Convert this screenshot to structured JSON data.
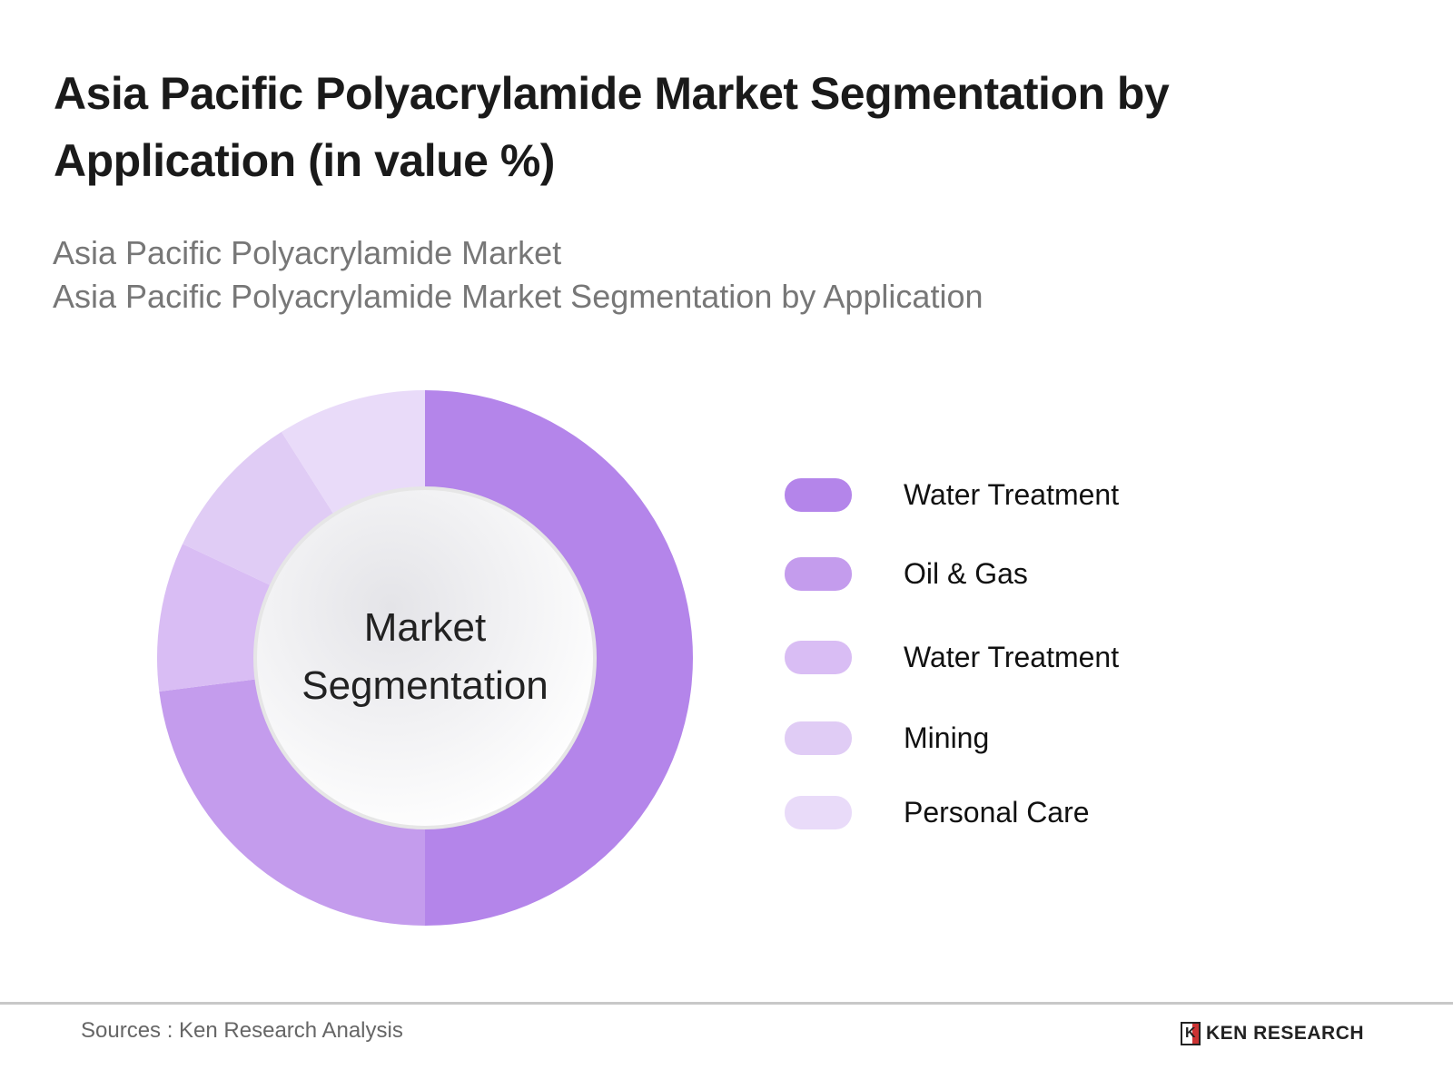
{
  "title": "Asia Pacific Polyacrylamide Market Segmentation by Application (in value %)",
  "subtitle_1": "Asia Pacific Polyacrylamide Market",
  "subtitle_2": "Asia Pacific Polyacrylamide Market Segmentation by Application",
  "chart_data": {
    "type": "pie",
    "variant": "donut",
    "center_label": "Market Segmentation",
    "categories": [
      "Water Treatment",
      "Oil & Gas",
      "Water Treatment",
      "Mining",
      "Personal Care"
    ],
    "values": [
      50,
      23,
      9,
      9,
      9
    ],
    "colors": [
      "#b485ea",
      "#c49ced",
      "#d9bdf4",
      "#e0ccf5",
      "#e9dbf9"
    ],
    "legend_position": "right"
  },
  "footer": {
    "source": "Sources : Ken Research Analysis",
    "logo_text": "KEN RESEARCH",
    "logo_mark": "K"
  }
}
